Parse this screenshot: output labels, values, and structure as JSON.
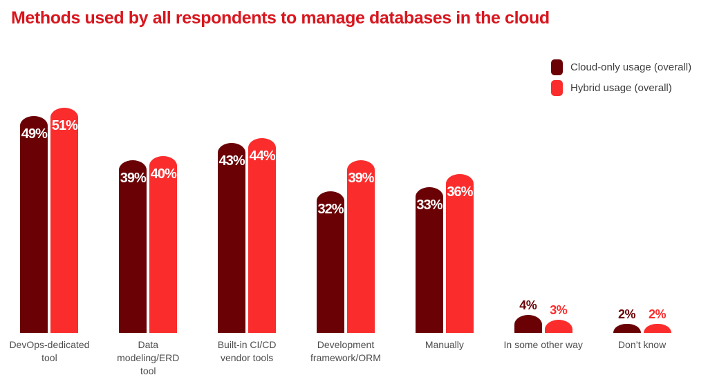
{
  "title": "Methods used by all respondents to manage databases in the cloud",
  "colors": {
    "title": "#D8161E",
    "cloud_only": "#6A0205",
    "hybrid": "#FB2C2C",
    "category_text": "#4D4D4D",
    "legend_text": "#3D3D3D",
    "value_label_inside": "#FFFFFF",
    "background": "#FFFFFF"
  },
  "legend": {
    "items": [
      {
        "label": "Cloud-only usage (overall)",
        "color": "#6A0205"
      },
      {
        "label": "Hybrid usage (overall)",
        "color": "#FB2C2C"
      }
    ]
  },
  "chart_data": {
    "type": "bar",
    "title": "Methods used by all respondents to manage databases in the cloud",
    "categories": [
      "DevOps-dedicated tool",
      "Data modeling/ERD tool",
      "Built-in CI/CD vendor tools",
      "Development framework/ORM",
      "Manually",
      "In some other way",
      "Don’t know"
    ],
    "categories_wrapped": [
      "DevOps-dedicated\ntool",
      "Data\nmodeling/ERD\ntool",
      "Built-in CI/CD\nvendor tools",
      "Development\nframework/ORM",
      "Manually",
      "In some other way",
      "Don’t know"
    ],
    "series": [
      {
        "name": "Cloud-only usage (overall)",
        "color": "#6A0205",
        "values": [
          49,
          39,
          43,
          32,
          33,
          4,
          2
        ]
      },
      {
        "name": "Hybrid usage (overall)",
        "color": "#FB2C2C",
        "values": [
          51,
          40,
          44,
          39,
          36,
          3,
          2
        ]
      }
    ],
    "value_suffix": "%",
    "value_labels": "inside bar for large values (white), above bar in series color for small values",
    "xlabel": "",
    "ylabel": "",
    "ylim": [
      0,
      55
    ],
    "grid": false,
    "axes_visible": false,
    "legend_position": "top-right"
  }
}
